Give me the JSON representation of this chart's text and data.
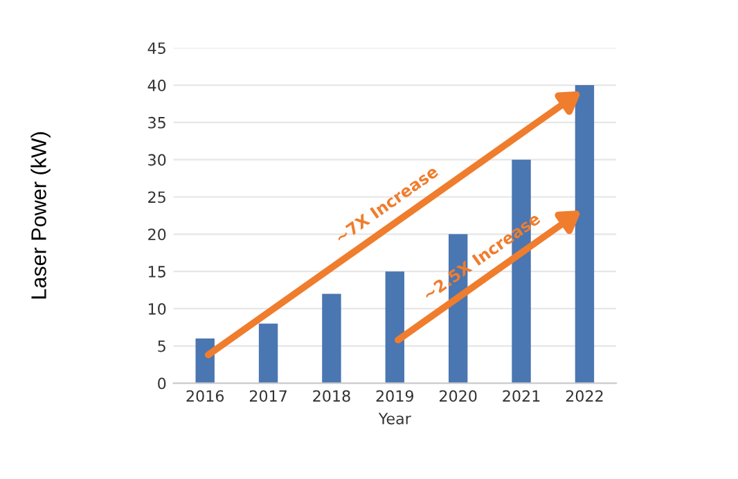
{
  "chart_data": {
    "type": "bar",
    "xlabel": "Year",
    "ylabel": "Laser Power (kW)",
    "categories": [
      "2016",
      "2017",
      "2018",
      "2019",
      "2020",
      "2021",
      "2022"
    ],
    "values": [
      6,
      8,
      12,
      15,
      20,
      30,
      40
    ],
    "color": "#4a76b2",
    "ylim": [
      0,
      45
    ],
    "yticks": [
      0,
      5,
      10,
      15,
      20,
      25,
      30,
      35,
      40,
      45
    ],
    "grid": "y",
    "annotations": [
      "~7X Increase",
      "~2.5X Increase"
    ]
  }
}
